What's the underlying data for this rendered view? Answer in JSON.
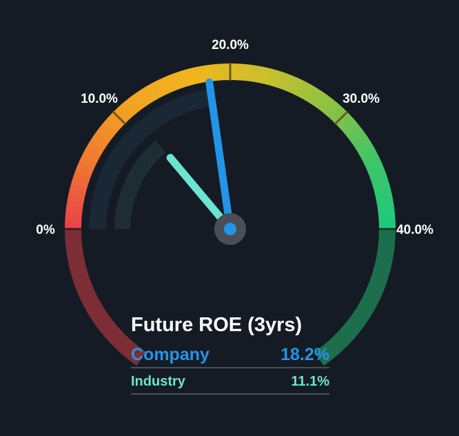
{
  "chart_data": {
    "type": "gauge",
    "title": "Future ROE (3yrs)",
    "min": 0,
    "max": 40,
    "tick_labels": [
      "0%",
      "10.0%",
      "20.0%",
      "30.0%",
      "40.0%"
    ],
    "tick_values": [
      0,
      10,
      20,
      30,
      40
    ],
    "series": [
      {
        "name": "Company",
        "value": 18.2,
        "label": "18.2%",
        "color": "#2394e6"
      },
      {
        "name": "Industry",
        "value": 11.1,
        "label": "11.1%",
        "color": "#6de4d2"
      }
    ],
    "gradient_colors": [
      "#e8414b",
      "#f07a2e",
      "#f2a423",
      "#f0b51d",
      "#c9c02c",
      "#8fc242",
      "#3fc468",
      "#1ec97c"
    ],
    "lower_colors": {
      "left": "#7d2d36",
      "right": "#1d6e4c"
    }
  }
}
